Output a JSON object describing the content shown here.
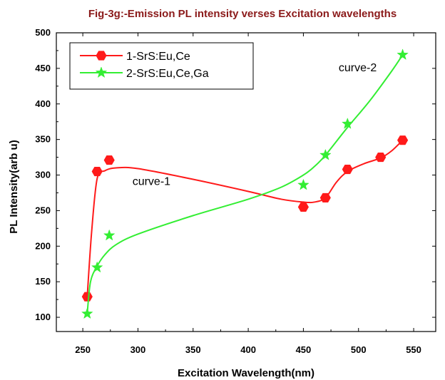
{
  "chart_data": {
    "type": "line",
    "title": "Fig-3g:-Emission PL intensity verses Excitation wavelengths",
    "xlabel": "Excitation Wavelength(nm)",
    "ylabel": "PL Intensity(arb u)",
    "xlim": [
      226,
      570
    ],
    "ylim": [
      80,
      500
    ],
    "xticks": [
      250,
      300,
      350,
      400,
      450,
      500,
      550
    ],
    "yticks": [
      100,
      150,
      200,
      250,
      300,
      350,
      400,
      450,
      500
    ],
    "grid": false,
    "legend_position": "top-left",
    "series": [
      {
        "name": "1-SrS:Eu,Ce",
        "color": "#ff1a1a",
        "marker": "hexagon",
        "x": [
          254,
          263,
          274,
          450,
          470,
          490,
          520,
          540
        ],
        "y": [
          129,
          305,
          321,
          255,
          268,
          308,
          325,
          349
        ],
        "curve": [
          [
            254,
            129
          ],
          [
            258,
            220
          ],
          [
            263,
            295
          ],
          [
            270,
            306
          ],
          [
            280,
            310
          ],
          [
            300,
            309
          ],
          [
            350,
            294
          ],
          [
            400,
            277
          ],
          [
            430,
            266
          ],
          [
            450,
            262
          ],
          [
            460,
            262
          ],
          [
            470,
            268
          ],
          [
            480,
            290
          ],
          [
            490,
            305
          ],
          [
            505,
            316
          ],
          [
            520,
            324
          ],
          [
            530,
            334
          ],
          [
            540,
            349
          ]
        ]
      },
      {
        "name": "2-SrS:Eu,Ce,Ga",
        "color": "#33ee33",
        "marker": "star",
        "x": [
          254,
          263,
          274,
          450,
          470,
          490,
          540
        ],
        "y": [
          105,
          170,
          215,
          286,
          328,
          372,
          469
        ],
        "curve": [
          [
            254,
            105
          ],
          [
            257,
            150
          ],
          [
            263,
            172
          ],
          [
            270,
            188
          ],
          [
            280,
            202
          ],
          [
            300,
            217
          ],
          [
            350,
            243
          ],
          [
            400,
            266
          ],
          [
            430,
            283
          ],
          [
            450,
            300
          ],
          [
            460,
            312
          ],
          [
            470,
            328
          ],
          [
            490,
            367
          ],
          [
            510,
            404
          ],
          [
            530,
            446
          ],
          [
            540,
            469
          ]
        ]
      }
    ],
    "annotations": [
      {
        "text": "curve-1",
        "x": 295,
        "y": 286
      },
      {
        "text": "curve-2",
        "x": 482,
        "y": 446
      }
    ]
  }
}
